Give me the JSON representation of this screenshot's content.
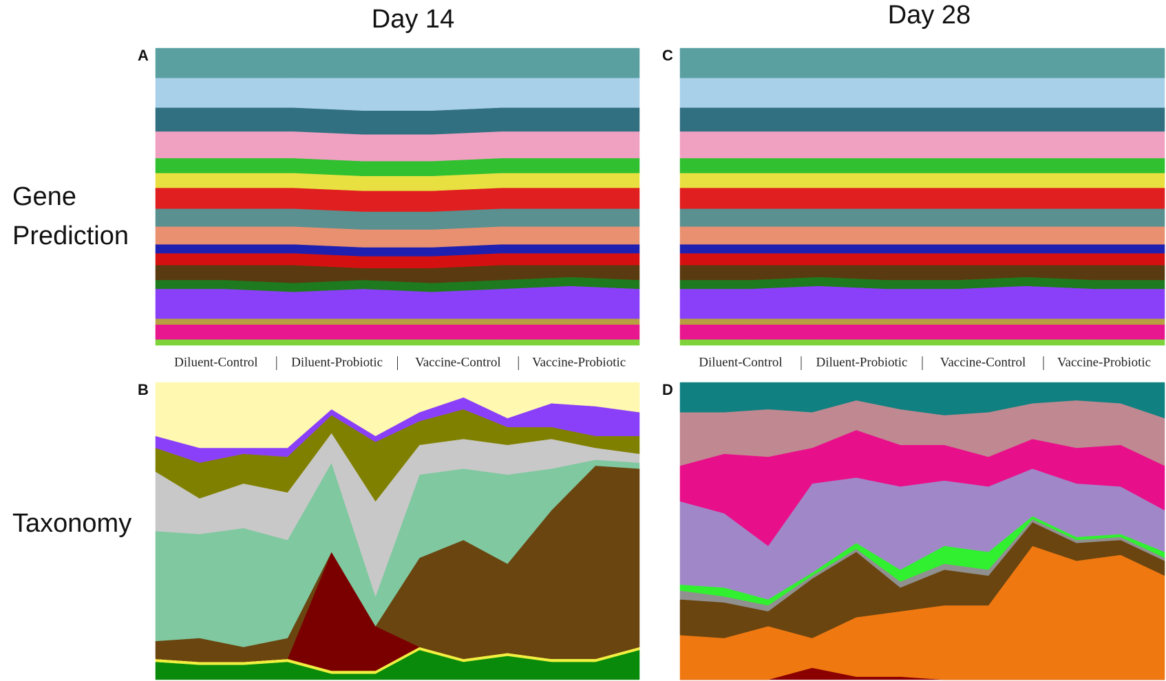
{
  "columns": [
    "Day 14",
    "Day 28"
  ],
  "rows": [
    "Gene",
    "Prediction",
    "Taxonomy"
  ],
  "chart_data": [
    {
      "type": "area",
      "label": "A",
      "ylim": [
        0,
        100
      ],
      "groups": [
        "Diluent-Control",
        "Diluent-Probiotic",
        "Vaccine-Control",
        "Vaccine-Probiotic"
      ],
      "series": [
        {
          "color": "#7fd33a",
          "values": [
            2,
            2,
            2,
            2,
            2,
            2,
            2,
            2
          ]
        },
        {
          "color": "#e8168f",
          "values": [
            5,
            5,
            5,
            5,
            5,
            5,
            5,
            5
          ]
        },
        {
          "color": "#b8a040",
          "values": [
            2,
            2,
            2,
            2,
            2,
            2,
            2,
            2
          ]
        },
        {
          "color": "#8a40f8",
          "values": [
            10,
            10,
            9,
            10,
            9,
            10,
            11,
            10
          ]
        },
        {
          "color": "#1e7a1e",
          "values": [
            3,
            3,
            3,
            3,
            3,
            3,
            3,
            3
          ]
        },
        {
          "color": "#5a3a10",
          "values": [
            5,
            5,
            6,
            4,
            5,
            5,
            4,
            5
          ]
        },
        {
          "color": "#d51010",
          "values": [
            4,
            4,
            4,
            4,
            4,
            4,
            4,
            4
          ]
        },
        {
          "color": "#2020b0",
          "values": [
            3,
            3,
            3,
            3,
            3,
            3,
            3,
            3
          ]
        },
        {
          "color": "#e89070",
          "values": [
            6,
            6,
            6,
            6,
            6,
            6,
            6,
            6
          ]
        },
        {
          "color": "#5a9090",
          "values": [
            6,
            6,
            6,
            6,
            6,
            6,
            6,
            6
          ]
        },
        {
          "color": "#e02020",
          "values": [
            7,
            7,
            7,
            7,
            7,
            7,
            7,
            7
          ]
        },
        {
          "color": "#e8e040",
          "values": [
            5,
            5,
            5,
            5,
            5,
            5,
            5,
            5
          ]
        },
        {
          "color": "#30c030",
          "values": [
            5,
            5,
            5,
            5,
            5,
            5,
            5,
            5
          ]
        },
        {
          "color": "#f0a0c0",
          "values": [
            9,
            9,
            9,
            9,
            9,
            9,
            9,
            9
          ]
        },
        {
          "color": "#307080",
          "values": [
            8,
            8,
            8,
            8,
            8,
            8,
            8,
            8
          ]
        },
        {
          "color": "#a8d0e8",
          "values": [
            10,
            10,
            10,
            11,
            11,
            10,
            10,
            10
          ]
        },
        {
          "color": "#5aa0a0",
          "values": [
            10,
            10,
            10,
            10,
            10,
            10,
            10,
            10
          ]
        }
      ]
    },
    {
      "type": "area",
      "label": "B",
      "ylim": [
        0,
        100
      ],
      "series": [
        {
          "color": "#0a8a0a",
          "values": [
            6,
            5,
            5,
            6,
            2,
            2,
            10,
            6,
            8,
            6,
            6,
            10
          ]
        },
        {
          "color": "#f0f040",
          "values": [
            1,
            1,
            1,
            1,
            1,
            1,
            1,
            1,
            1,
            1,
            1,
            1
          ]
        },
        {
          "color": "#7a0000",
          "values": [
            0,
            0,
            0,
            0,
            40,
            15,
            0,
            0,
            0,
            0,
            0,
            0
          ]
        },
        {
          "color": "#6a4510",
          "values": [
            6,
            8,
            5,
            7,
            0,
            0,
            30,
            40,
            30,
            50,
            65,
            60
          ]
        },
        {
          "color": "#80c8a0",
          "values": [
            37,
            35,
            40,
            33,
            30,
            10,
            28,
            24,
            30,
            14,
            2,
            2
          ]
        },
        {
          "color": "#c8c8c8",
          "values": [
            20,
            12,
            15,
            16,
            10,
            32,
            10,
            10,
            10,
            10,
            4,
            3
          ]
        },
        {
          "color": "#808000",
          "values": [
            8,
            12,
            10,
            12,
            6,
            20,
            8,
            10,
            6,
            4,
            4,
            6
          ]
        },
        {
          "color": "#8a40f8",
          "values": [
            4,
            5,
            2,
            3,
            2,
            2,
            3,
            4,
            3,
            8,
            10,
            8
          ]
        },
        {
          "color": "#fff8b0",
          "values": [
            18,
            22,
            22,
            22,
            9,
            18,
            10,
            5,
            12,
            7,
            8,
            10
          ]
        }
      ]
    },
    {
      "type": "area",
      "label": "C",
      "ylim": [
        0,
        100
      ],
      "groups": [
        "Diluent-Control",
        "Diluent-Probiotic",
        "Vaccine-Control",
        "Vaccine-Probiotic"
      ],
      "series": [
        {
          "color": "#7fd33a",
          "values": [
            2,
            2,
            2,
            2,
            2,
            2,
            2,
            2
          ]
        },
        {
          "color": "#e8168f",
          "values": [
            5,
            5,
            5,
            5,
            5,
            5,
            5,
            5
          ]
        },
        {
          "color": "#b8a040",
          "values": [
            2,
            2,
            2,
            2,
            2,
            2,
            2,
            2
          ]
        },
        {
          "color": "#8a40f8",
          "values": [
            10,
            10,
            11,
            10,
            10,
            11,
            10,
            10
          ]
        },
        {
          "color": "#1e7a1e",
          "values": [
            3,
            3,
            3,
            3,
            3,
            3,
            3,
            3
          ]
        },
        {
          "color": "#5a3a10",
          "values": [
            5,
            5,
            4,
            5,
            5,
            4,
            5,
            5
          ]
        },
        {
          "color": "#d51010",
          "values": [
            4,
            4,
            4,
            4,
            4,
            4,
            4,
            4
          ]
        },
        {
          "color": "#2020b0",
          "values": [
            3,
            3,
            3,
            3,
            3,
            3,
            3,
            3
          ]
        },
        {
          "color": "#e89070",
          "values": [
            6,
            6,
            6,
            6,
            6,
            6,
            6,
            6
          ]
        },
        {
          "color": "#5a9090",
          "values": [
            6,
            6,
            6,
            6,
            6,
            6,
            6,
            6
          ]
        },
        {
          "color": "#e02020",
          "values": [
            7,
            7,
            7,
            7,
            7,
            7,
            7,
            7
          ]
        },
        {
          "color": "#e8e040",
          "values": [
            5,
            5,
            5,
            5,
            5,
            5,
            5,
            5
          ]
        },
        {
          "color": "#30c030",
          "values": [
            5,
            5,
            5,
            5,
            5,
            5,
            5,
            5
          ]
        },
        {
          "color": "#f0a0c0",
          "values": [
            9,
            9,
            9,
            9,
            9,
            9,
            9,
            9
          ]
        },
        {
          "color": "#307080",
          "values": [
            8,
            8,
            8,
            8,
            8,
            8,
            8,
            8
          ]
        },
        {
          "color": "#a8d0e8",
          "values": [
            10,
            10,
            10,
            10,
            10,
            10,
            10,
            10
          ]
        },
        {
          "color": "#5aa0a0",
          "values": [
            10,
            10,
            10,
            10,
            10,
            10,
            10,
            10
          ]
        }
      ]
    },
    {
      "type": "area",
      "label": "D",
      "ylim": [
        0,
        100
      ],
      "series": [
        {
          "color": "#8b0000",
          "values": [
            0,
            0,
            0,
            4,
            1,
            1,
            0,
            0,
            0,
            0,
            0,
            0
          ]
        },
        {
          "color": "#f07810",
          "values": [
            15,
            14,
            18,
            10,
            20,
            22,
            25,
            25,
            45,
            40,
            42,
            35
          ]
        },
        {
          "color": "#6a4510",
          "values": [
            12,
            12,
            5,
            20,
            22,
            8,
            12,
            10,
            8,
            6,
            5,
            5
          ]
        },
        {
          "color": "#909090",
          "values": [
            3,
            2,
            2,
            1,
            1,
            2,
            2,
            2,
            1,
            1,
            1,
            1
          ]
        },
        {
          "color": "#30f030",
          "values": [
            2,
            3,
            2,
            1,
            2,
            4,
            6,
            6,
            1,
            1,
            1,
            2
          ]
        },
        {
          "color": "#a088c8",
          "values": [
            28,
            25,
            18,
            30,
            22,
            28,
            22,
            22,
            16,
            18,
            16,
            14
          ]
        },
        {
          "color": "#e8108a",
          "values": [
            12,
            20,
            30,
            12,
            16,
            14,
            12,
            10,
            10,
            12,
            14,
            15
          ]
        },
        {
          "color": "#c08890",
          "values": [
            18,
            14,
            16,
            12,
            10,
            12,
            10,
            15,
            12,
            16,
            14,
            16
          ]
        },
        {
          "color": "#108080",
          "values": [
            10,
            10,
            9,
            10,
            6,
            9,
            11,
            10,
            7,
            6,
            7,
            12
          ]
        }
      ]
    }
  ]
}
